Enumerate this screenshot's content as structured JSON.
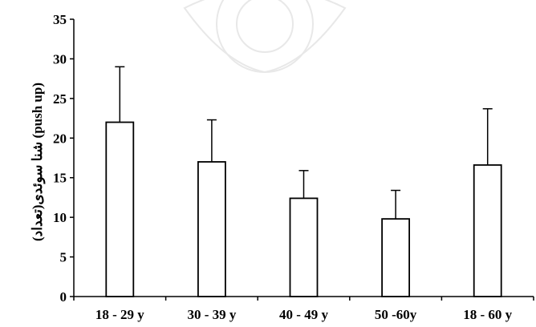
{
  "chart_data": {
    "type": "bar",
    "categories": [
      "18 - 29 y",
      "30 - 39 y",
      "40 - 49 y",
      "50 -60y",
      "18 - 60 y"
    ],
    "values": [
      22,
      17,
      12.4,
      9.8,
      16.6
    ],
    "error_upper": [
      29,
      22.3,
      15.9,
      13.4,
      23.7
    ],
    "title": "",
    "xlabel": "",
    "ylabel": "(تعداد)شنا سوئدی (push up)",
    "ylim": [
      0,
      35
    ],
    "yticks": [
      "0",
      "5",
      "10",
      "15",
      "20",
      "25",
      "30",
      "35"
    ],
    "grid": false,
    "bar_fill": "#ffffff",
    "bar_stroke": "#000000"
  }
}
